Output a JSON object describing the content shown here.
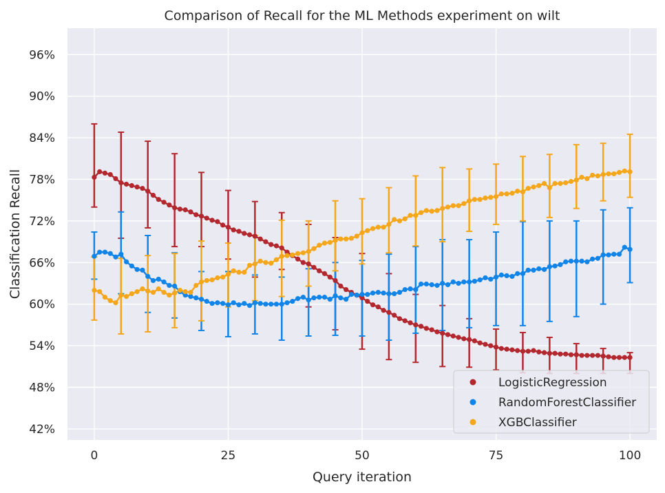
{
  "chart_data": {
    "type": "line",
    "title": "Comparison of Recall for the ML Methods experiment on wilt",
    "xlabel": "Query iteration",
    "ylabel": "Classification Recall",
    "xlim": [
      -5,
      105
    ],
    "ylim": [
      40.4,
      99.8
    ],
    "x_ticks": [
      0,
      25,
      50,
      75,
      100
    ],
    "x_tick_labels": [
      "0",
      "25",
      "50",
      "75",
      "100"
    ],
    "y_ticks": [
      42,
      48,
      54,
      60,
      66,
      72,
      78,
      84,
      90,
      96
    ],
    "y_tick_labels": [
      "42%",
      "48%",
      "54%",
      "60%",
      "66%",
      "72%",
      "78%",
      "84%",
      "90%",
      "96%"
    ],
    "grid": true,
    "legend_position": "bottom-right",
    "x_start": 0,
    "x_end": 100,
    "series": [
      {
        "name": "LogisticRegression",
        "color": "#b2282e",
        "values": [
          78.3,
          79.1,
          78.9,
          78.7,
          78.1,
          77.5,
          77.3,
          77.1,
          76.9,
          76.7,
          76.3,
          75.7,
          75.1,
          74.7,
          74.3,
          73.9,
          73.7,
          73.6,
          73.3,
          72.9,
          72.7,
          72.4,
          72.1,
          71.9,
          71.4,
          71.1,
          70.7,
          70.5,
          70.2,
          70.0,
          69.8,
          69.4,
          69.0,
          68.6,
          68.4,
          68.1,
          67.5,
          67.0,
          66.5,
          66.0,
          65.8,
          65.3,
          64.8,
          64.4,
          63.9,
          63.4,
          62.6,
          62.1,
          61.7,
          61.3,
          60.9,
          60.4,
          59.9,
          59.6,
          59.1,
          58.8,
          58.4,
          57.9,
          57.6,
          57.3,
          57.0,
          56.8,
          56.5,
          56.3,
          56.0,
          55.8,
          55.6,
          55.4,
          55.2,
          55.0,
          54.9,
          54.7,
          54.4,
          54.2,
          54.0,
          53.8,
          53.6,
          53.5,
          53.4,
          53.3,
          53.2,
          53.2,
          53.3,
          53.1,
          53.0,
          52.9,
          52.9,
          52.8,
          52.8,
          52.7,
          52.7,
          52.6,
          52.6,
          52.6,
          52.6,
          52.5,
          52.4,
          52.3,
          52.3,
          52.3,
          52.3
        ],
        "error_x": [
          0,
          5,
          10,
          15,
          20,
          25,
          30,
          35,
          40,
          45,
          50,
          55,
          60,
          65,
          70,
          75,
          80,
          85,
          90,
          95,
          100
        ],
        "error_low": [
          74.0,
          69.5,
          71.0,
          68.3,
          68.3,
          66.5,
          63.9,
          65.0,
          59.6,
          56.3,
          53.5,
          52.0,
          51.6,
          51.0,
          50.9,
          50.5,
          50.1,
          50.0,
          50.0,
          50.0,
          50.0
        ],
        "error_high": [
          86.0,
          84.8,
          83.5,
          81.7,
          79.0,
          76.4,
          74.8,
          73.2,
          71.5,
          69.6,
          67.3,
          64.4,
          61.4,
          59.8,
          57.9,
          56.4,
          55.9,
          55.2,
          54.3,
          53.6,
          53.0
        ]
      },
      {
        "name": "RandomForestClassifier",
        "color": "#1184e8",
        "values": [
          66.9,
          67.5,
          67.5,
          67.3,
          66.8,
          67.2,
          66.1,
          65.5,
          65.0,
          64.9,
          64.0,
          63.4,
          63.6,
          63.2,
          62.7,
          62.6,
          61.8,
          61.3,
          61.1,
          60.9,
          60.7,
          60.4,
          60.1,
          60.2,
          60.1,
          59.9,
          60.2,
          59.9,
          60.1,
          59.8,
          60.2,
          60.1,
          60.0,
          60.0,
          60.0,
          60.0,
          60.2,
          60.4,
          60.8,
          61.0,
          60.6,
          60.9,
          61.0,
          61.0,
          60.7,
          61.2,
          60.9,
          60.7,
          61.4,
          61.3,
          61.4,
          61.4,
          61.6,
          61.7,
          61.6,
          61.5,
          61.5,
          61.7,
          62.1,
          62.2,
          62.1,
          62.9,
          62.9,
          62.8,
          62.7,
          63.0,
          62.8,
          63.2,
          63.0,
          63.2,
          63.2,
          63.3,
          63.5,
          63.8,
          63.6,
          63.9,
          64.2,
          64.1,
          64.0,
          64.4,
          64.4,
          64.9,
          64.9,
          65.1,
          65.0,
          65.4,
          65.5,
          65.7,
          66.1,
          66.2,
          66.2,
          66.2,
          66.1,
          66.5,
          66.6,
          67.1,
          67.1,
          67.2,
          67.2,
          68.2,
          67.9
        ],
        "error_x": [
          0,
          5,
          10,
          15,
          20,
          25,
          30,
          35,
          40,
          45,
          50,
          55,
          60,
          65,
          70,
          75,
          80,
          85,
          90,
          95,
          100
        ],
        "error_low": [
          63.6,
          61.5,
          58.8,
          58.0,
          56.2,
          55.3,
          55.7,
          54.8,
          55.4,
          55.5,
          55.4,
          54.8,
          55.8,
          56.2,
          56.6,
          56.9,
          56.9,
          57.5,
          58.2,
          60.0,
          63.1
        ],
        "error_high": [
          70.4,
          73.3,
          69.9,
          67.4,
          64.7,
          64.7,
          64.2,
          63.9,
          65.1,
          66.0,
          66.3,
          67.2,
          68.3,
          69.3,
          69.3,
          70.4,
          71.9,
          72.0,
          72.0,
          73.6,
          73.9
        ]
      },
      {
        "name": "XGBClassifier",
        "color": "#f5a71c",
        "values": [
          62.0,
          61.8,
          61.0,
          60.5,
          60.2,
          61.3,
          61.1,
          61.5,
          61.8,
          62.2,
          61.9,
          61.7,
          62.2,
          61.7,
          61.3,
          61.6,
          62.0,
          61.8,
          61.7,
          62.7,
          63.2,
          63.4,
          63.5,
          63.8,
          63.9,
          64.3,
          64.8,
          64.6,
          64.6,
          65.6,
          65.8,
          66.2,
          66.0,
          65.9,
          66.4,
          66.9,
          67.0,
          67.1,
          67.3,
          67.4,
          67.6,
          68.0,
          68.5,
          68.8,
          68.9,
          69.2,
          69.4,
          69.4,
          69.5,
          69.8,
          70.3,
          70.6,
          70.9,
          71.1,
          71.1,
          71.5,
          72.2,
          72.0,
          72.3,
          72.8,
          72.8,
          73.2,
          73.5,
          73.4,
          73.5,
          73.8,
          74.0,
          74.2,
          74.2,
          74.5,
          74.9,
          75.1,
          75.1,
          75.3,
          75.4,
          75.5,
          75.9,
          75.9,
          76.0,
          76.3,
          76.2,
          76.7,
          76.9,
          77.1,
          77.4,
          76.8,
          77.4,
          77.4,
          77.5,
          77.7,
          77.9,
          78.3,
          78.1,
          78.6,
          78.5,
          78.7,
          78.8,
          78.8,
          79.0,
          79.2,
          79.1
        ],
        "error_x": [
          0,
          5,
          10,
          15,
          20,
          25,
          30,
          35,
          40,
          45,
          50,
          55,
          60,
          65,
          70,
          75,
          80,
          85,
          90,
          95,
          100
        ],
        "error_low": [
          57.7,
          55.7,
          56.0,
          56.6,
          57.6,
          59.6,
          60.5,
          61.1,
          62.6,
          64.8,
          65.8,
          67.4,
          68.4,
          69.0,
          70.5,
          71.5,
          72.0,
          72.5,
          73.8,
          74.9,
          75.4
        ],
        "error_high": [
          66.8,
          66.6,
          67.0,
          67.3,
          69.1,
          68.8,
          69.9,
          72.1,
          72.0,
          74.9,
          75.2,
          76.8,
          78.5,
          79.7,
          79.5,
          80.2,
          81.3,
          81.6,
          83.0,
          83.2,
          84.5
        ]
      }
    ]
  }
}
